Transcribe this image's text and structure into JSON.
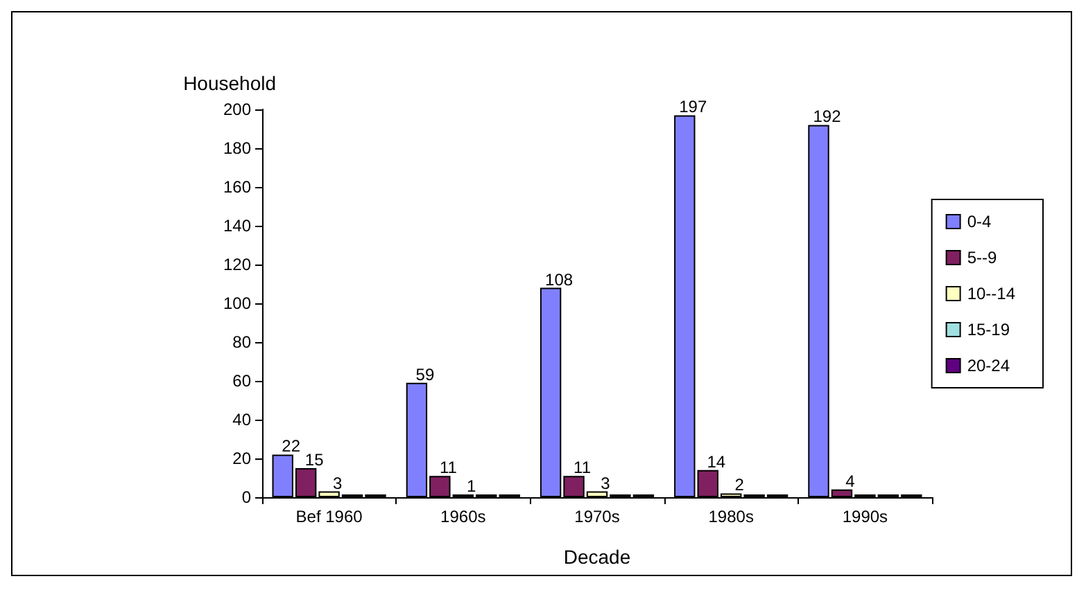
{
  "chart_data": {
    "type": "bar",
    "xlabel": "Decade",
    "ylabel": "Household",
    "categories": [
      "Bef 1960",
      "1960s",
      "1970s",
      "1980s",
      "1990s"
    ],
    "series": [
      {
        "name": "0-4",
        "color": "#8080ff",
        "values": [
          22,
          59,
          108,
          197,
          192
        ],
        "value_labels": [
          "22",
          "59",
          "108",
          "197",
          "192"
        ]
      },
      {
        "name": "5--9",
        "color": "#802060",
        "values": [
          15,
          11,
          11,
          14,
          4
        ],
        "value_labels": [
          "15",
          "11",
          "11",
          "14",
          "4"
        ]
      },
      {
        "name": "10--14",
        "color": "#ffffc0",
        "values": [
          3,
          1,
          3,
          2,
          0
        ],
        "value_labels": [
          "3",
          "1",
          "3",
          "2",
          null
        ]
      },
      {
        "name": "15-19",
        "color": "#a0e0e0",
        "values": [
          0,
          0,
          0,
          0,
          0
        ],
        "value_labels": [
          null,
          null,
          null,
          null,
          null
        ]
      },
      {
        "name": "20-24",
        "color": "#600080",
        "values": [
          0,
          0,
          0,
          0,
          0
        ],
        "value_labels": [
          null,
          null,
          null,
          null,
          null
        ]
      }
    ],
    "ylim": [
      0,
      200
    ],
    "yticks": [
      0,
      20,
      40,
      60,
      80,
      100,
      120,
      140,
      160,
      180,
      200
    ],
    "grid": false,
    "legend": "right"
  }
}
